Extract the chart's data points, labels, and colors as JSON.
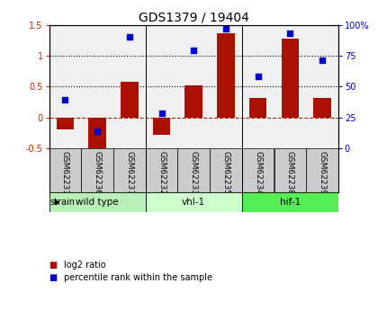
{
  "title": "GDS1379 / 19404",
  "samples": [
    "GSM62231",
    "GSM62236",
    "GSM62237",
    "GSM62232",
    "GSM62233",
    "GSM62235",
    "GSM62234",
    "GSM62238",
    "GSM62239"
  ],
  "log2_ratio": [
    -0.2,
    -0.55,
    0.58,
    -0.28,
    0.52,
    1.37,
    0.32,
    1.27,
    0.32
  ],
  "percentile_rank": [
    0.28,
    -0.22,
    1.3,
    0.07,
    1.08,
    1.43,
    0.67,
    1.37,
    0.92
  ],
  "groups": [
    {
      "label": "wild type",
      "start": 0,
      "end": 3,
      "color": "#b8f0b8"
    },
    {
      "label": "vhl-1",
      "start": 3,
      "end": 6,
      "color": "#ccffcc"
    },
    {
      "label": "hif-1",
      "start": 6,
      "end": 9,
      "color": "#55ee55"
    }
  ],
  "bar_color": "#aa1100",
  "dot_color": "#0000cc",
  "ylim_left": [
    -0.5,
    1.5
  ],
  "ylim_right": [
    0,
    100
  ],
  "bg_color": "#ffffff",
  "plot_bg": "#f0f0f0",
  "xlabels_bg": "#cccccc",
  "title_fontsize": 10,
  "tick_fontsize": 7,
  "label_fontsize": 6.5
}
